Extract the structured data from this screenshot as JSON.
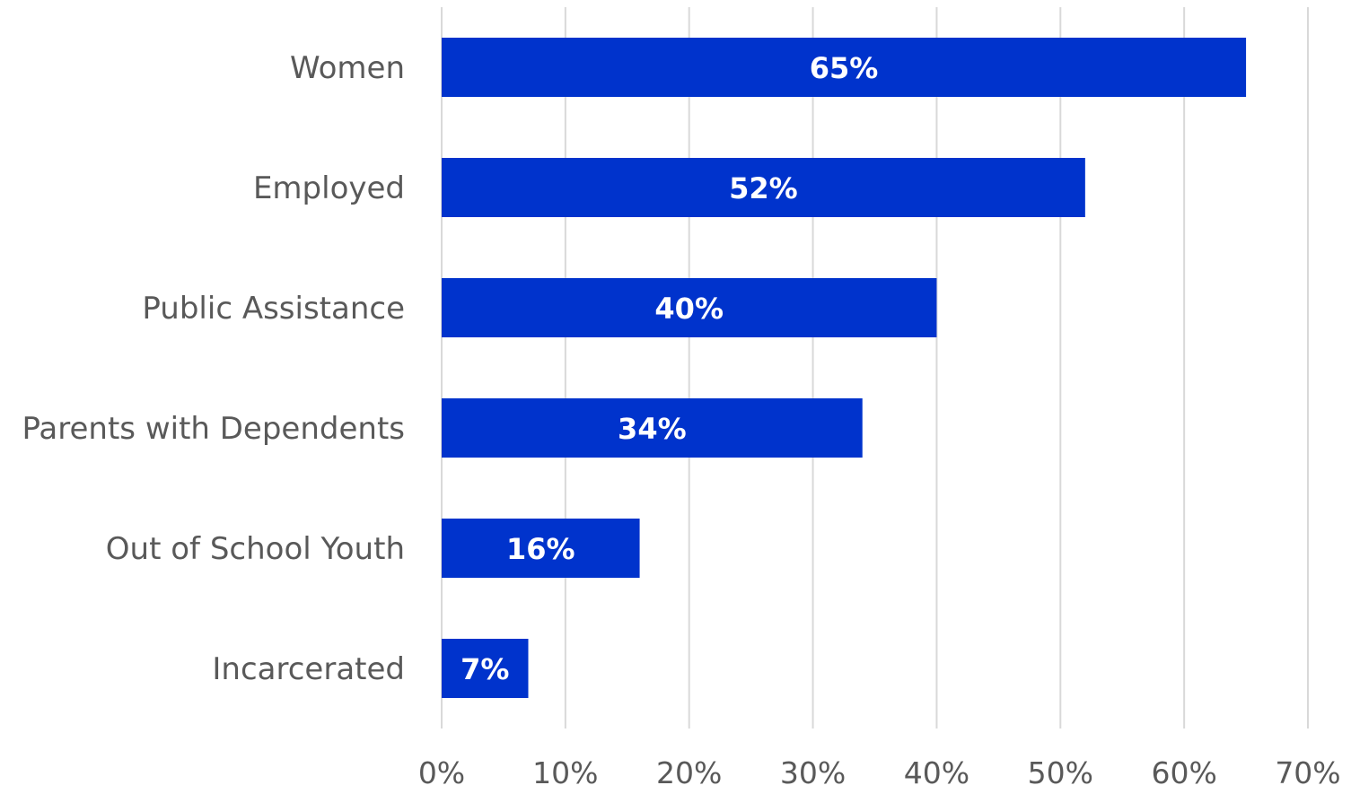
{
  "chart_data": {
    "type": "bar",
    "orientation": "horizontal",
    "categories": [
      "Women",
      "Employed",
      "Public Assistance",
      "Parents with Dependents",
      "Out of School Youth",
      "Incarcerated"
    ],
    "values": [
      65,
      52,
      40,
      34,
      16,
      7
    ],
    "data_labels": [
      "65%",
      "52%",
      "40%",
      "34%",
      "16%",
      "7%"
    ],
    "x_ticks": [
      "0%",
      "10%",
      "20%",
      "30%",
      "40%",
      "50%",
      "60%",
      "70%"
    ],
    "xlim": [
      0,
      70
    ],
    "grid": true,
    "title": "",
    "xlabel": "",
    "ylabel": "",
    "colors": {
      "bar": "#0033cc",
      "grid": "#d9d9d9",
      "label_text": "#595959",
      "data_label_text": "#ffffff"
    }
  }
}
